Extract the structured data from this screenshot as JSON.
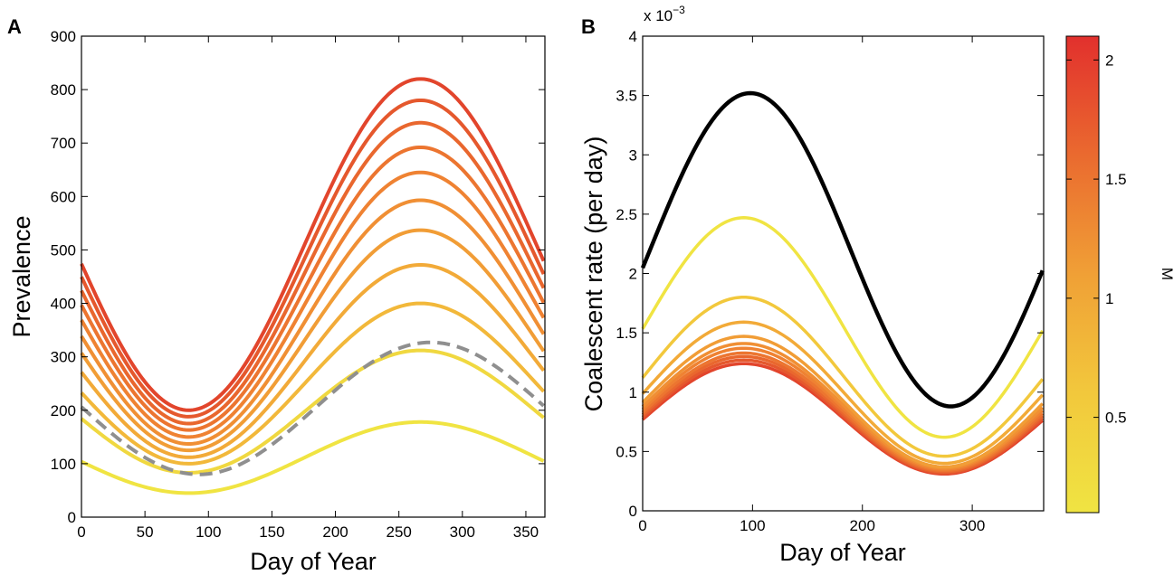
{
  "chart_data": [
    {
      "panel": "A",
      "type": "line",
      "xlabel": "Day of Year",
      "ylabel": "Prevalence",
      "xlim": [
        0,
        365
      ],
      "ylim": [
        0,
        900
      ],
      "xticks": [
        "0",
        "50",
        "100",
        "150",
        "200",
        "250",
        "300",
        "350"
      ],
      "yticks": [
        "0",
        "100",
        "200",
        "300",
        "400",
        "500",
        "600",
        "700",
        "800",
        "900"
      ],
      "grid": false,
      "series_model": "sinusoid: y(day) = mean - amp*cos(2*pi*(day - peak_day)/365)",
      "series": [
        {
          "peak_day": 267,
          "trough": 45,
          "peak": 178,
          "color": "#f0e442"
        },
        {
          "peak_day": 267,
          "trough": 83,
          "peak": 312,
          "color": "#f0d840"
        },
        {
          "peak_day": 267,
          "trough": 100,
          "peak": 400,
          "color": "#f2b83a"
        },
        {
          "peak_day": 267,
          "trough": 112,
          "peak": 472,
          "color": "#f2aa38"
        },
        {
          "peak_day": 267,
          "trough": 125,
          "peak": 537,
          "color": "#f19d36"
        },
        {
          "peak_day": 267,
          "trough": 137,
          "peak": 593,
          "color": "#f08f34"
        },
        {
          "peak_day": 267,
          "trough": 150,
          "peak": 645,
          "color": "#ef8232"
        },
        {
          "peak_day": 267,
          "trough": 163,
          "peak": 692,
          "color": "#ec7530"
        },
        {
          "peak_day": 267,
          "trough": 175,
          "peak": 738,
          "color": "#e9672e"
        },
        {
          "peak_day": 267,
          "trough": 188,
          "peak": 780,
          "color": "#e5582d"
        },
        {
          "peak_day": 267,
          "trough": 200,
          "peak": 820,
          "color": "#e2452c"
        }
      ],
      "dashed_series": {
        "peak_day": 275,
        "trough": 80,
        "peak": 327,
        "color": "#8f8f8f"
      }
    },
    {
      "panel": "B",
      "type": "line",
      "xlabel": "Day of Year",
      "ylabel": "Coalescent rate (per day)",
      "exponent_label": "x 10",
      "exponent_power": "−3",
      "xlim": [
        0,
        365
      ],
      "ylim": [
        0,
        4
      ],
      "xticks": [
        "0",
        "100",
        "200",
        "300"
      ],
      "yticks": [
        "0",
        "0.5",
        "1",
        "1.5",
        "2",
        "2.5",
        "3",
        "3.5",
        "4"
      ],
      "grid": false,
      "series_model": "sinusoid in units of 1e-3 per day: y(day) = mean + amp*cos(2*pi*(day - peak_day)/365)",
      "series": [
        {
          "peak_day": 92,
          "trough": 0.31,
          "peak": 1.24,
          "color": "#e2452c"
        },
        {
          "peak_day": 92,
          "trough": 0.32,
          "peak": 1.27,
          "color": "#e5582d"
        },
        {
          "peak_day": 92,
          "trough": 0.33,
          "peak": 1.3,
          "color": "#e9672e"
        },
        {
          "peak_day": 92,
          "trough": 0.34,
          "peak": 1.33,
          "color": "#ec7530"
        },
        {
          "peak_day": 92,
          "trough": 0.35,
          "peak": 1.37,
          "color": "#ef8232"
        },
        {
          "peak_day": 92,
          "trough": 0.36,
          "peak": 1.41,
          "color": "#f08f34"
        },
        {
          "peak_day": 92,
          "trough": 0.37,
          "peak": 1.47,
          "color": "#f19d36"
        },
        {
          "peak_day": 92,
          "trough": 0.4,
          "peak": 1.59,
          "color": "#f2aa38"
        },
        {
          "peak_day": 92,
          "trough": 0.46,
          "peak": 1.8,
          "color": "#f2c83c"
        },
        {
          "peak_day": 92,
          "trough": 0.62,
          "peak": 2.47,
          "color": "#f0e442"
        },
        {
          "peak_day": 98,
          "trough": 0.88,
          "peak": 3.52,
          "color": "#000000"
        }
      ],
      "colorbar": {
        "label": "M",
        "range": [
          0.1,
          2.1
        ],
        "ticks": [
          "0.5",
          "1",
          "1.5",
          "2"
        ],
        "tick_values": [
          0.5,
          1,
          1.5,
          2
        ],
        "color_low": "#f0e442",
        "color_high": "#e2302d"
      }
    }
  ],
  "panel_labels": [
    "A",
    "B"
  ]
}
